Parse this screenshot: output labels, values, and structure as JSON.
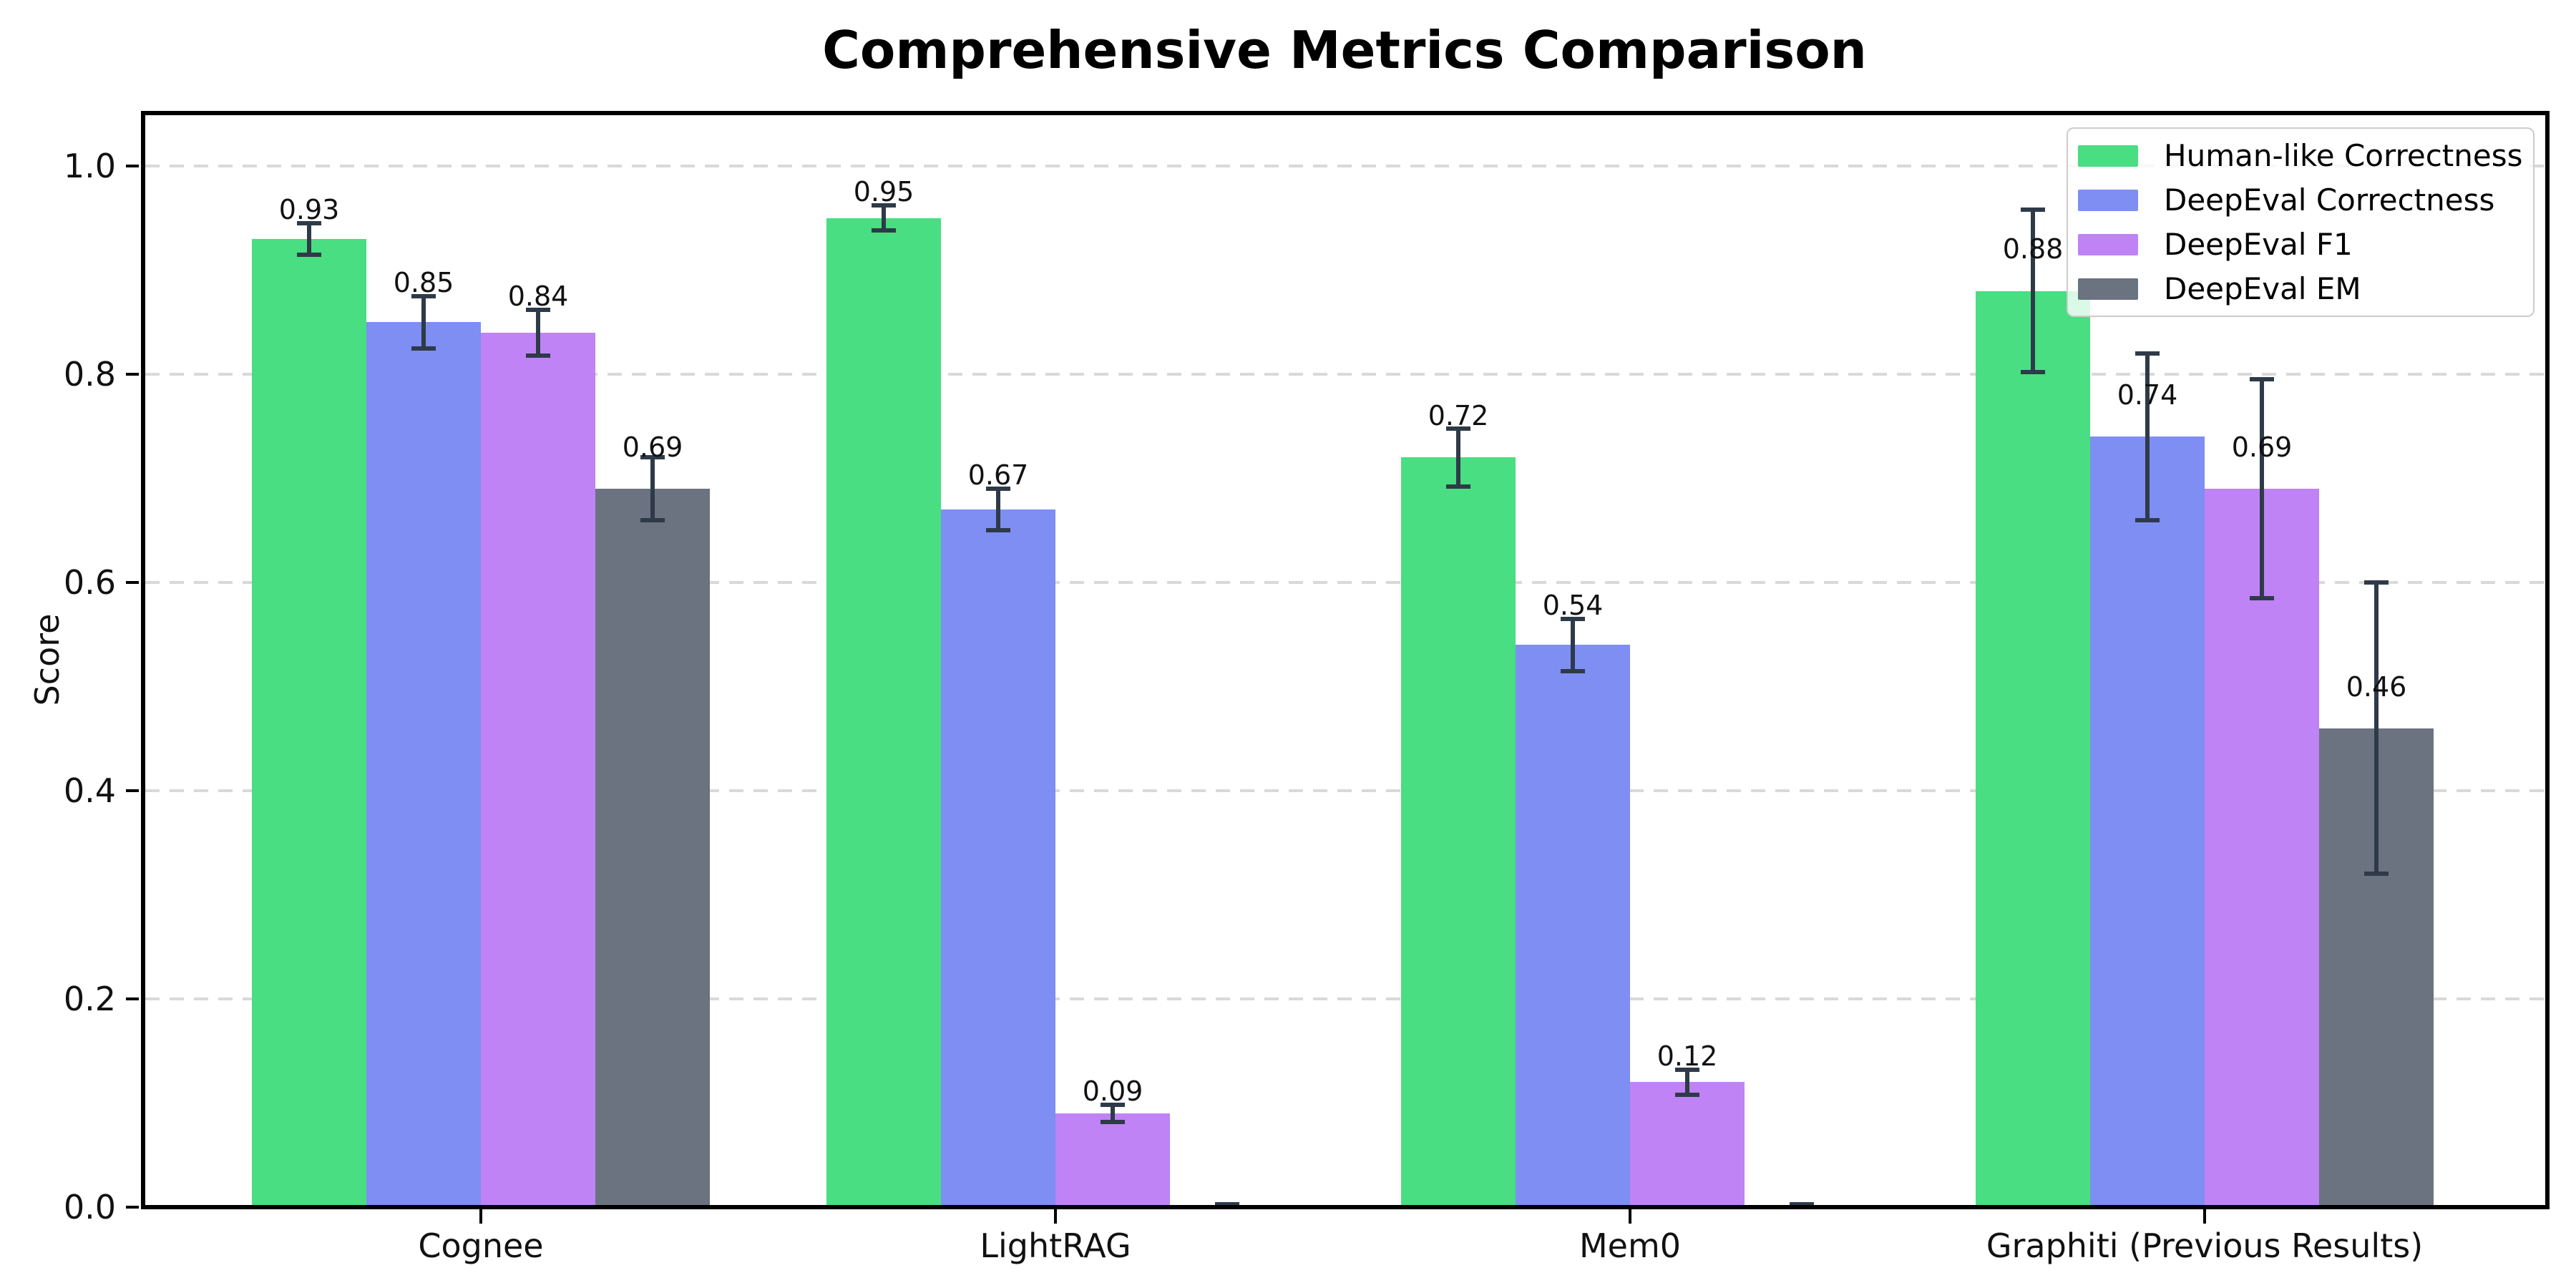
{
  "chart_data": {
    "type": "bar",
    "title": "Comprehensive Metrics Comparison",
    "ylabel": "Score",
    "xlabel": "",
    "categories": [
      "Cognee",
      "LightRAG",
      "Mem0",
      "Graphiti (Previous Results)"
    ],
    "series": [
      {
        "name": "Human-like Correctness",
        "color": "#48de81",
        "values": [
          0.93,
          0.95,
          0.72,
          0.88
        ],
        "errors": [
          0.015,
          0.012,
          0.028,
          0.078
        ],
        "labels": [
          "0.93",
          "0.95",
          "0.72",
          "0.88"
        ]
      },
      {
        "name": "DeepEval Correctness",
        "color": "#7e8ef2",
        "values": [
          0.85,
          0.67,
          0.54,
          0.74
        ],
        "errors": [
          0.025,
          0.02,
          0.025,
          0.08
        ],
        "labels": [
          "0.85",
          "0.67",
          "0.54",
          "0.74"
        ]
      },
      {
        "name": "DeepEval F1",
        "color": "#bf83f5",
        "values": [
          0.84,
          0.09,
          0.12,
          0.69
        ],
        "errors": [
          0.022,
          0.008,
          0.012,
          0.105
        ],
        "labels": [
          "0.84",
          "0.09",
          "0.12",
          "0.69"
        ]
      },
      {
        "name": "DeepEval EM",
        "color": "#6b7280",
        "values": [
          0.69,
          0.0,
          0.0,
          0.46
        ],
        "errors": [
          0.03,
          0.003,
          0.003,
          0.14
        ],
        "labels": [
          "0.69",
          "",
          "",
          "0.46"
        ]
      }
    ],
    "ytick_labels": [
      "0.0",
      "0.2",
      "0.4",
      "0.6",
      "0.8",
      "1.0"
    ],
    "yticks": [
      0.0,
      0.2,
      0.4,
      0.6,
      0.8,
      1.0
    ],
    "ylim": [
      0,
      1.05
    ],
    "grid": "horizontal-dashed",
    "legend_position": "upper-right",
    "colors": {
      "error_bar": "#2e3a48",
      "gridline": "#d9d9d9",
      "spine": "#000000",
      "background": "#ffffff"
    }
  }
}
